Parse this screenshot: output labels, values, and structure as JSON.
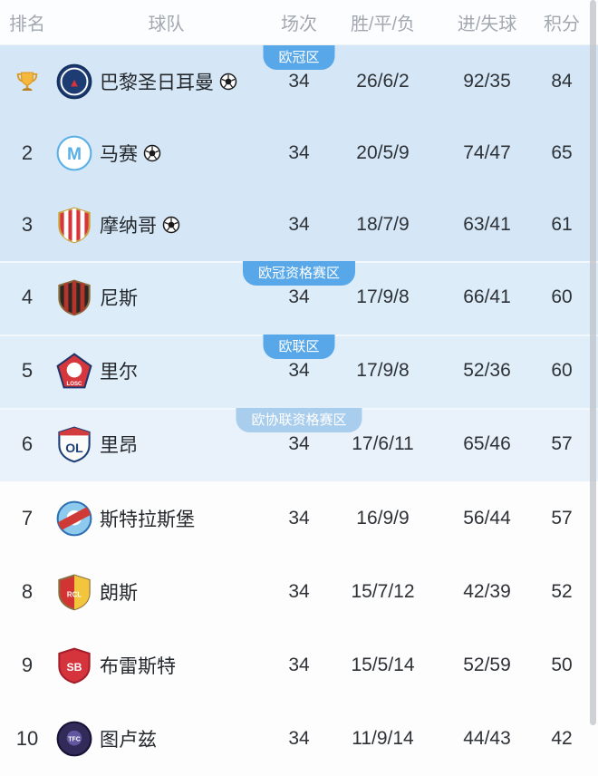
{
  "header": {
    "rank": "排名",
    "team": "球队",
    "played": "场次",
    "wdl": "胜/平/负",
    "goals": "进/失球",
    "points": "积分"
  },
  "colors": {
    "badge": "#58a8e9",
    "badge_muted": "#a9cdec",
    "header_text": "#a2a8b0",
    "body_text": "#2e3237",
    "scrollbar": "#bdc2c7",
    "trophy_gold": "#f6b83c",
    "zone_cl_bg": "#d5e7f6",
    "zone_cl_qual_bg": "#dcecf8",
    "zone_el_bg": "#dfeef9",
    "zone_conf_qual_bg": "#e9f2fb",
    "zone_plain_bg": "#fdfdfd"
  },
  "icons": {
    "rank1": "trophy-icon",
    "qualified_mark": "soccer-ball-icon"
  },
  "zones": [
    {
      "id": "champions-league",
      "badge": "欧冠区",
      "muted": false,
      "bg": "#d5e7f6",
      "rows": [
        {
          "rank": "1",
          "trophy": true,
          "team": "巴黎圣日耳曼",
          "ball": true,
          "played": "34",
          "wdl": "26/6/2",
          "goals": "92/35",
          "points": "84",
          "logo": {
            "id": "psg",
            "shape": "circle",
            "c1": "#1d3c74",
            "border": "#14305f",
            "overlays": [
              {
                "t": "ring",
                "c": "#ffffff"
              }
            ],
            "label": "▲",
            "labelColor": "#d8343c",
            "labelSize": 15,
            "labelY": 30
          }
        },
        {
          "rank": "2",
          "trophy": false,
          "team": "马赛",
          "ball": true,
          "played": "34",
          "wdl": "20/5/9",
          "goals": "74/47",
          "points": "65",
          "logo": {
            "id": "marseille",
            "shape": "circle",
            "c1": "#ffffff",
            "border": "#58b0e6",
            "overlays": [],
            "label": "M",
            "labelColor": "#58b0e6",
            "labelSize": 22,
            "labelY": 32
          }
        },
        {
          "rank": "3",
          "trophy": false,
          "team": "摩纳哥",
          "ball": true,
          "played": "34",
          "wdl": "18/7/9",
          "goals": "63/41",
          "points": "61",
          "logo": {
            "id": "monaco",
            "shape": "shield",
            "c1": "#d8353b",
            "border": "#c9a23c",
            "overlays": [
              {
                "t": "stripes",
                "c": "#ffffff"
              }
            ],
            "label": ""
          }
        }
      ]
    },
    {
      "id": "cl-qualification",
      "badge": "欧冠资格赛区",
      "muted": false,
      "bg": "#dcecf8",
      "rows": [
        {
          "rank": "4",
          "trophy": false,
          "team": "尼斯",
          "ball": false,
          "played": "34",
          "wdl": "17/9/8",
          "goals": "66/41",
          "points": "60",
          "logo": {
            "id": "nice",
            "shape": "shield",
            "c1": "#2b2723",
            "border": "#8a6d3f",
            "overlays": [
              {
                "t": "stripes",
                "c": "#b5342c"
              }
            ],
            "label": ""
          }
        }
      ]
    },
    {
      "id": "europa-league",
      "badge": "欧联区",
      "muted": false,
      "bg": "#dfeef9",
      "rows": [
        {
          "rank": "5",
          "trophy": false,
          "team": "里尔",
          "ball": false,
          "played": "34",
          "wdl": "17/9/8",
          "goals": "52/36",
          "points": "60",
          "logo": {
            "id": "lille",
            "shape": "pentagon",
            "c1": "#d6373c",
            "border": "#22356b",
            "overlays": [
              {
                "t": "dot",
                "c": "#ffffff"
              }
            ],
            "label": "LOSC",
            "labelColor": "#ffffff",
            "labelSize": 7,
            "labelY": 42
          }
        }
      ]
    },
    {
      "id": "conference-qualification",
      "badge": "欧协联资格赛区",
      "muted": true,
      "bg": "#e9f2fb",
      "rows": [
        {
          "rank": "6",
          "trophy": false,
          "team": "里昂",
          "ball": false,
          "played": "34",
          "wdl": "17/6/11",
          "goals": "65/46",
          "points": "57",
          "logo": {
            "id": "lyon",
            "shape": "shield",
            "c1": "#fbfbf9",
            "border": "#1c3f77",
            "overlays": [
              {
                "t": "topband",
                "c": "#d23c3c"
              }
            ],
            "label": "OL",
            "labelColor": "#1c3f77",
            "labelSize": 16,
            "labelY": 34
          }
        }
      ]
    },
    {
      "id": "mid-table",
      "badge": "",
      "muted": false,
      "bg": "#fdfdfd",
      "rows": [
        {
          "rank": "7",
          "trophy": false,
          "team": "斯特拉斯堡",
          "ball": false,
          "played": "34",
          "wdl": "16/9/9",
          "goals": "56/44",
          "points": "57",
          "logo": {
            "id": "strasbourg",
            "shape": "circle",
            "c1": "#8ec9ee",
            "border": "#2f72b4",
            "overlays": [
              {
                "t": "dot",
                "c": "#ffffff"
              },
              {
                "t": "band",
                "c": "#cf3a36"
              }
            ],
            "label": ""
          }
        },
        {
          "rank": "8",
          "trophy": false,
          "team": "朗斯",
          "ball": false,
          "played": "34",
          "wdl": "15/7/12",
          "goals": "42/39",
          "points": "52",
          "logo": {
            "id": "lens",
            "shape": "shield",
            "c1": "#d23434",
            "border": "#8a6d3f",
            "overlays": [
              {
                "t": "splitv",
                "c": "#f2c53d"
              }
            ],
            "label": "RCL",
            "labelColor": "#ffffff",
            "labelSize": 9,
            "labelY": 30
          }
        },
        {
          "rank": "9",
          "trophy": false,
          "team": "布雷斯特",
          "ball": false,
          "played": "34",
          "wdl": "15/5/14",
          "goals": "52/59",
          "points": "50",
          "logo": {
            "id": "brest",
            "shape": "shield",
            "c1": "#d6343c",
            "border": "#a41f2b",
            "overlays": [],
            "label": "SB",
            "labelColor": "#ffffff",
            "labelSize": 14,
            "labelY": 31
          }
        },
        {
          "rank": "10",
          "trophy": false,
          "team": "图卢兹",
          "ball": false,
          "played": "34",
          "wdl": "11/9/14",
          "goals": "44/43",
          "points": "42",
          "logo": {
            "id": "toulouse",
            "shape": "circle",
            "c1": "#322b59",
            "border": "#161236",
            "overlays": [
              {
                "t": "dot",
                "c": "#6157a0"
              }
            ],
            "label": "TFC",
            "labelColor": "#ffffff",
            "labelSize": 8,
            "labelY": 27
          }
        }
      ]
    }
  ]
}
